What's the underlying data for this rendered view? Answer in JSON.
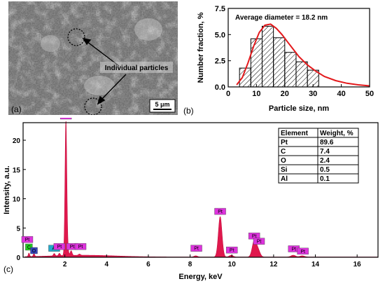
{
  "panels": {
    "a": {
      "letter": "(a)",
      "annotation": "Individual particles",
      "scalebar": "5 μm"
    },
    "b": {
      "letter": "(b)"
    },
    "c": {
      "letter": "(c)"
    }
  },
  "chart_data": [
    {
      "type": "bar",
      "title": "",
      "xlabel": "Particle size, nm",
      "ylabel": "Number fraction, %",
      "annotation": "Average diameter = 18.2 nm",
      "xlim": [
        0,
        50
      ],
      "ylim": [
        0,
        7.5
      ],
      "xticks": [
        "0",
        "10",
        "20",
        "30",
        "40",
        "50"
      ],
      "yticks": [
        "0.0",
        "2.5",
        "5.0",
        "7.5"
      ],
      "bin_edges": [
        4,
        8,
        12,
        16,
        20,
        24,
        28,
        32
      ],
      "values": [
        1.8,
        4.6,
        5.8,
        4.7,
        3.3,
        2.4,
        1.6
      ],
      "fit_curve": {
        "type": "lognormal",
        "x": [
          3,
          5,
          7,
          9,
          11,
          13,
          15,
          17,
          19,
          21,
          23,
          25,
          28,
          31,
          34,
          38,
          42,
          46,
          50
        ],
        "y": [
          0.2,
          0.9,
          2.3,
          3.9,
          5.2,
          5.9,
          6.0,
          5.6,
          5.0,
          4.3,
          3.6,
          2.9,
          2.1,
          1.5,
          1.0,
          0.6,
          0.35,
          0.2,
          0.1
        ]
      },
      "grid": false
    },
    {
      "type": "line",
      "title": "",
      "xlabel": "Energy, keV",
      "ylabel": "Intensity, a.u.",
      "xlim": [
        0,
        17
      ],
      "ylim": [
        0,
        23
      ],
      "xticks": [
        "2",
        "4",
        "6",
        "8",
        "10",
        "12",
        "14",
        "16"
      ],
      "yticks": [
        "0",
        "5",
        "10",
        "15",
        "20"
      ],
      "peaks": [
        {
          "x": 0.28,
          "y": 0.6
        },
        {
          "x": 0.52,
          "y": 0.5
        },
        {
          "x": 1.49,
          "y": 0.4
        },
        {
          "x": 1.74,
          "y": 0.4
        },
        {
          "x": 2.05,
          "y": 23.2
        },
        {
          "x": 2.13,
          "y": 1.2
        },
        {
          "x": 2.3,
          "y": 0.8
        },
        {
          "x": 2.7,
          "y": 0.2
        },
        {
          "x": 8.27,
          "y": 0.2
        },
        {
          "x": 9.44,
          "y": 6.9
        },
        {
          "x": 9.97,
          "y": 0.3
        },
        {
          "x": 11.07,
          "y": 2.7
        },
        {
          "x": 11.25,
          "y": 1.2
        },
        {
          "x": 12.94,
          "y": 0.3
        },
        {
          "x": 13.37,
          "y": 0.2
        }
      ],
      "peak_labels": [
        {
          "text": "Pt",
          "x": 0.2,
          "y": 2.5,
          "color": "#dd33dd"
        },
        {
          "text": "C",
          "x": 0.28,
          "y": 1.2,
          "color": "#22cc22"
        },
        {
          "text": "O",
          "x": 0.52,
          "y": 0.6,
          "color": "#3344bb"
        },
        {
          "text": "Al",
          "x": 1.49,
          "y": 1.0,
          "color": "#22aacc"
        },
        {
          "text": "Pt",
          "x": 1.74,
          "y": 1.3,
          "color": "#dd33dd"
        },
        {
          "text": "Pt",
          "x": 2.05,
          "y": 23.6,
          "color": "#dd33dd"
        },
        {
          "text": "Pt",
          "x": 2.35,
          "y": 1.3,
          "color": "#dd33dd"
        },
        {
          "text": "Pt",
          "x": 2.75,
          "y": 1.3,
          "color": "#dd33dd"
        },
        {
          "text": "Pt",
          "x": 8.3,
          "y": 1.0,
          "color": "#dd33dd"
        },
        {
          "text": "Pt",
          "x": 9.44,
          "y": 7.3,
          "color": "#dd33dd"
        },
        {
          "text": "Pt",
          "x": 10.0,
          "y": 0.7,
          "color": "#dd33dd"
        },
        {
          "text": "Pt",
          "x": 11.07,
          "y": 3.1,
          "color": "#dd33dd"
        },
        {
          "text": "Pt",
          "x": 11.3,
          "y": 2.2,
          "color": "#dd33dd"
        },
        {
          "text": "Pt",
          "x": 12.97,
          "y": 0.9,
          "color": "#dd33dd"
        },
        {
          "text": "Pt",
          "x": 13.4,
          "y": 0.5,
          "color": "#dd33dd"
        }
      ],
      "table": {
        "headers": [
          "Element",
          "Weight, %"
        ],
        "rows": [
          [
            "Pt",
            "89.6"
          ],
          [
            "C",
            "7.4"
          ],
          [
            "O",
            "2.4"
          ],
          [
            "Si",
            "0.5"
          ],
          [
            "Al",
            "0.1"
          ]
        ]
      },
      "colors": {
        "spectrum_fill": "#e0184d",
        "spectrum_line": "#c41240"
      },
      "grid": false
    }
  ]
}
